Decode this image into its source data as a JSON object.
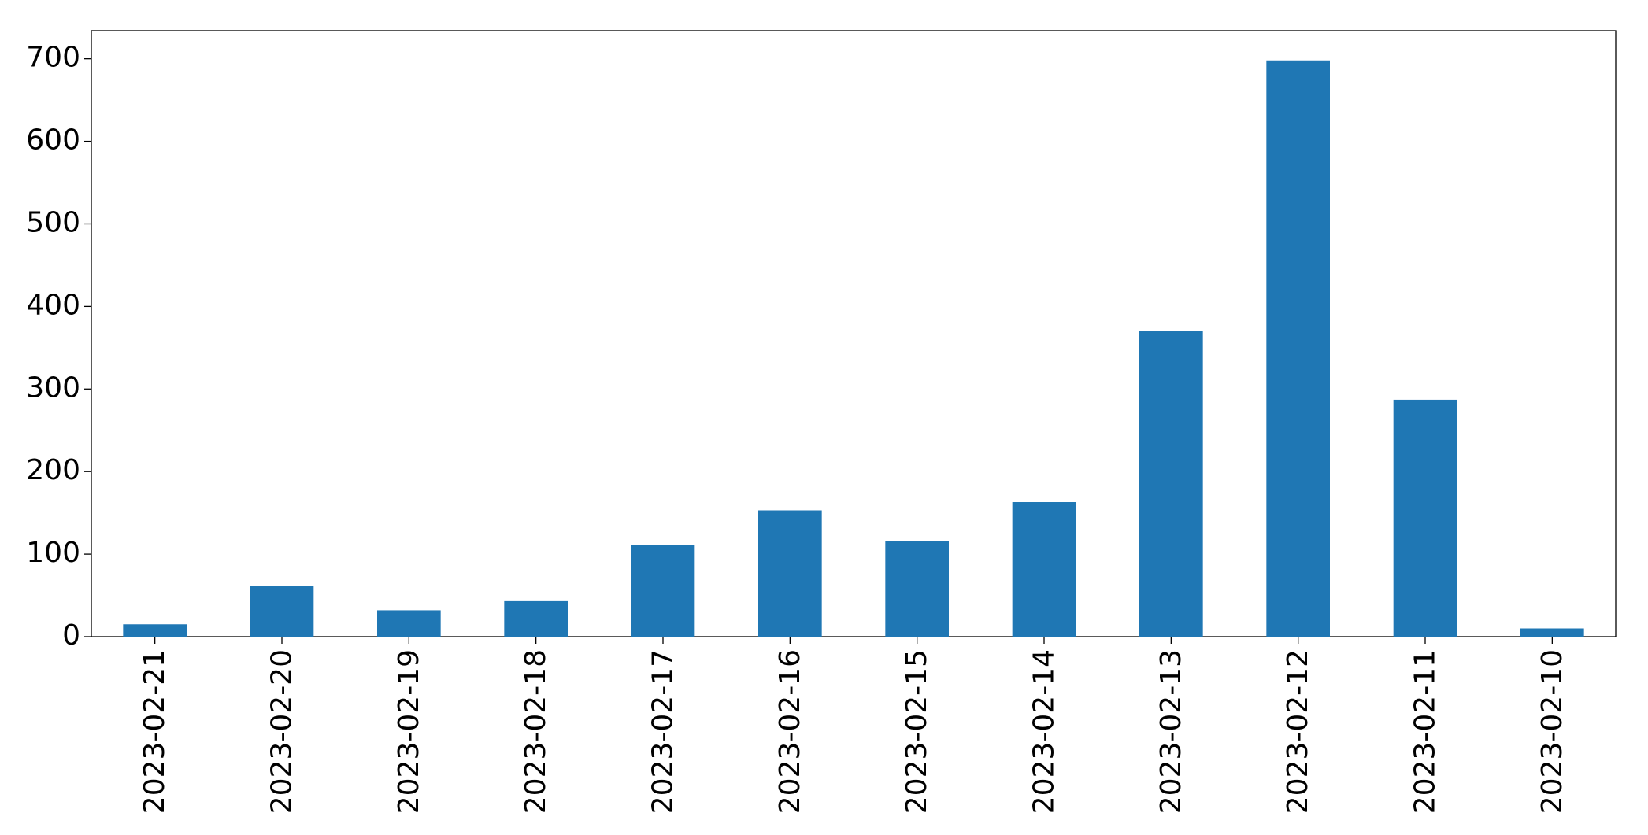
{
  "chart_data": {
    "type": "bar",
    "categories": [
      "2023-02-21",
      "2023-02-20",
      "2023-02-19",
      "2023-02-18",
      "2023-02-17",
      "2023-02-16",
      "2023-02-15",
      "2023-02-14",
      "2023-02-13",
      "2023-02-12",
      "2023-02-11",
      "2023-02-10"
    ],
    "values": [
      15,
      61,
      32,
      43,
      111,
      153,
      116,
      163,
      370,
      698,
      287,
      10
    ],
    "color": "#1f77b4",
    "ylim": [
      0,
      734
    ],
    "yticks": [
      0,
      100,
      200,
      300,
      400,
      500,
      600,
      700
    ],
    "grid": false
  }
}
